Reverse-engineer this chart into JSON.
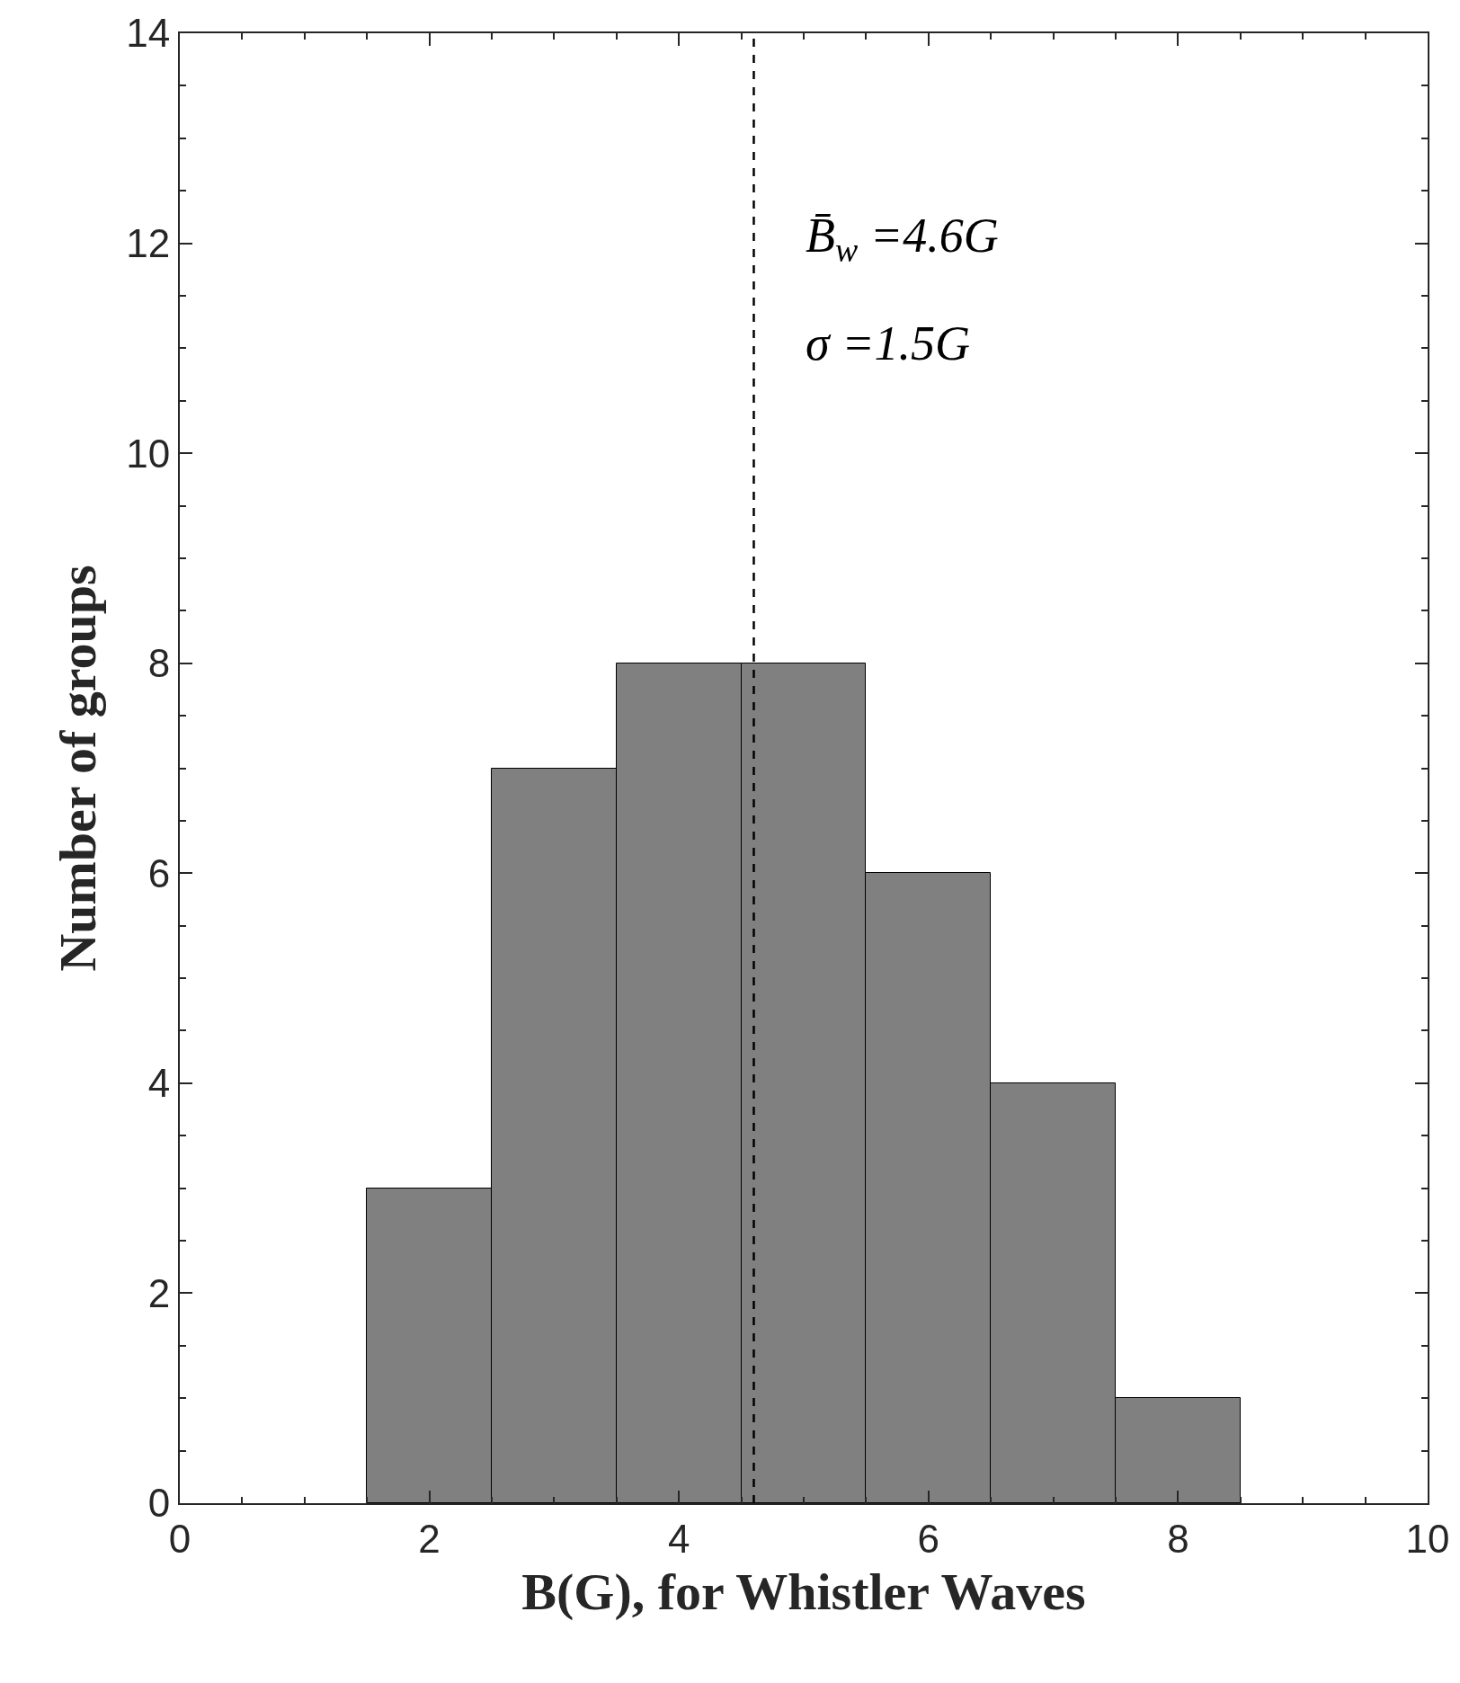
{
  "chart_data": {
    "type": "histogram",
    "xlabel": "B(G), for Whistler Waves",
    "ylabel": "Number of groups",
    "bins": [
      1.5,
      2.5,
      3.5,
      4.5,
      5.5,
      6.5,
      7.5,
      8.5
    ],
    "values": [
      3,
      7,
      8,
      8,
      6,
      4,
      1
    ],
    "color": "#808080",
    "xlim": [
      0,
      10
    ],
    "xticks": [
      0,
      2,
      4,
      6,
      8,
      10
    ],
    "ylim": [
      0,
      14
    ],
    "yticks": [
      0,
      2,
      4,
      6,
      8,
      10,
      12,
      14
    ],
    "ref_lines": [
      {
        "axis": "x",
        "value": 4.6,
        "line_style": "dashed",
        "color": "#000000"
      }
    ],
    "annotations": [
      "B̄$_{w}$ =4.6G",
      "σ =1.5G"
    ]
  }
}
